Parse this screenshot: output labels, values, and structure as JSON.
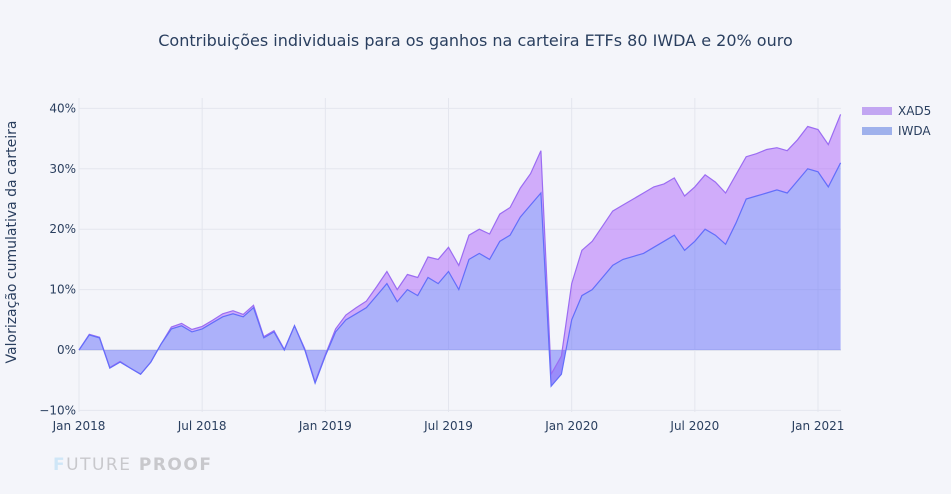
{
  "chart_data": {
    "type": "area",
    "title": "Contribuições individuais para os ganhos na carteira ETFs 80 IWDA e 20% ouro",
    "xlabel": "",
    "ylabel": "Valorização cumulativa da carteira",
    "ylim": [
      -0.105,
      0.42
    ],
    "y_ticks": [
      -0.1,
      0,
      0.1,
      0.2,
      0.3,
      0.4
    ],
    "y_tick_labels": [
      "−10%",
      "0%",
      "10%",
      "20%",
      "30%",
      "40%"
    ],
    "x_ticks": [
      "2018-01",
      "2018-07",
      "2019-01",
      "2019-07",
      "2020-01",
      "2020-07",
      "2021-01"
    ],
    "x_tick_labels": [
      "Jan 2018",
      "Jul 2018",
      "Jan 2019",
      "Jul 2019",
      "Jan 2020",
      "Jul 2020",
      "Jan 2021"
    ],
    "grid": true,
    "legend_position": "top-right",
    "x_months": [
      0,
      0.5,
      1,
      1.5,
      2,
      2.5,
      3,
      3.5,
      4,
      4.5,
      5,
      5.5,
      6,
      6.5,
      7,
      7.5,
      8,
      8.5,
      9,
      9.5,
      10,
      10.5,
      11,
      11.5,
      12,
      12.5,
      13,
      13.5,
      14,
      14.5,
      15,
      15.5,
      16,
      16.5,
      17,
      17.5,
      18,
      18.5,
      19,
      19.5,
      20,
      20.5,
      21,
      21.5,
      22,
      22.5,
      23,
      23.5,
      24,
      24.5,
      25,
      25.5,
      26,
      26.5,
      27,
      27.5,
      28,
      28.5,
      29,
      29.5,
      30,
      30.5,
      31,
      31.5,
      32,
      32.5,
      33,
      33.5,
      34,
      34.5,
      35,
      35.5,
      36,
      36.5,
      37.1
    ],
    "series": [
      {
        "name": "IWDA",
        "color": "#636efa",
        "values": [
          0,
          0.025,
          0.02,
          -0.03,
          -0.02,
          -0.03,
          -0.04,
          -0.02,
          0.01,
          0.035,
          0.04,
          0.03,
          0.035,
          0.045,
          0.055,
          0.06,
          0.055,
          0.07,
          0.02,
          0.03,
          0.0,
          0.04,
          0.0,
          -0.055,
          -0.01,
          0.03,
          0.05,
          0.06,
          0.07,
          0.09,
          0.11,
          0.08,
          0.1,
          0.09,
          0.12,
          0.11,
          0.13,
          0.1,
          0.15,
          0.16,
          0.15,
          0.18,
          0.19,
          0.22,
          0.24,
          0.26,
          -0.06,
          -0.04,
          0.05,
          0.09,
          0.1,
          0.12,
          0.14,
          0.15,
          0.155,
          0.16,
          0.17,
          0.18,
          0.19,
          0.165,
          0.18,
          0.2,
          0.19,
          0.175,
          0.21,
          0.25,
          0.255,
          0.26,
          0.265,
          0.26,
          0.28,
          0.3,
          0.295,
          0.27,
          0.31
        ]
      },
      {
        "name": "XAD5",
        "color": "#ab63fa",
        "values": [
          0,
          0.001,
          0.001,
          0.001,
          0.001,
          0.0,
          0.0,
          0.0,
          0.0,
          0.003,
          0.004,
          0.004,
          0.004,
          0.004,
          0.005,
          0.005,
          0.004,
          0.004,
          0.002,
          0.002,
          0.001,
          0.0,
          0.002,
          0.002,
          0.002,
          0.005,
          0.008,
          0.01,
          0.011,
          0.015,
          0.02,
          0.02,
          0.025,
          0.03,
          0.034,
          0.04,
          0.04,
          0.04,
          0.04,
          0.04,
          0.042,
          0.045,
          0.046,
          0.048,
          0.052,
          0.07,
          0.02,
          0.03,
          0.06,
          0.075,
          0.08,
          0.085,
          0.09,
          0.09,
          0.095,
          0.1,
          0.1,
          0.095,
          0.095,
          0.09,
          0.09,
          0.09,
          0.088,
          0.085,
          0.08,
          0.07,
          0.07,
          0.072,
          0.07,
          0.07,
          0.068,
          0.07,
          0.07,
          0.07,
          0.08
        ]
      }
    ]
  },
  "watermark": {
    "text": "FUTURE PROOF",
    "part1": "F",
    "part2": "UTURE",
    "part3": " PROOF"
  }
}
